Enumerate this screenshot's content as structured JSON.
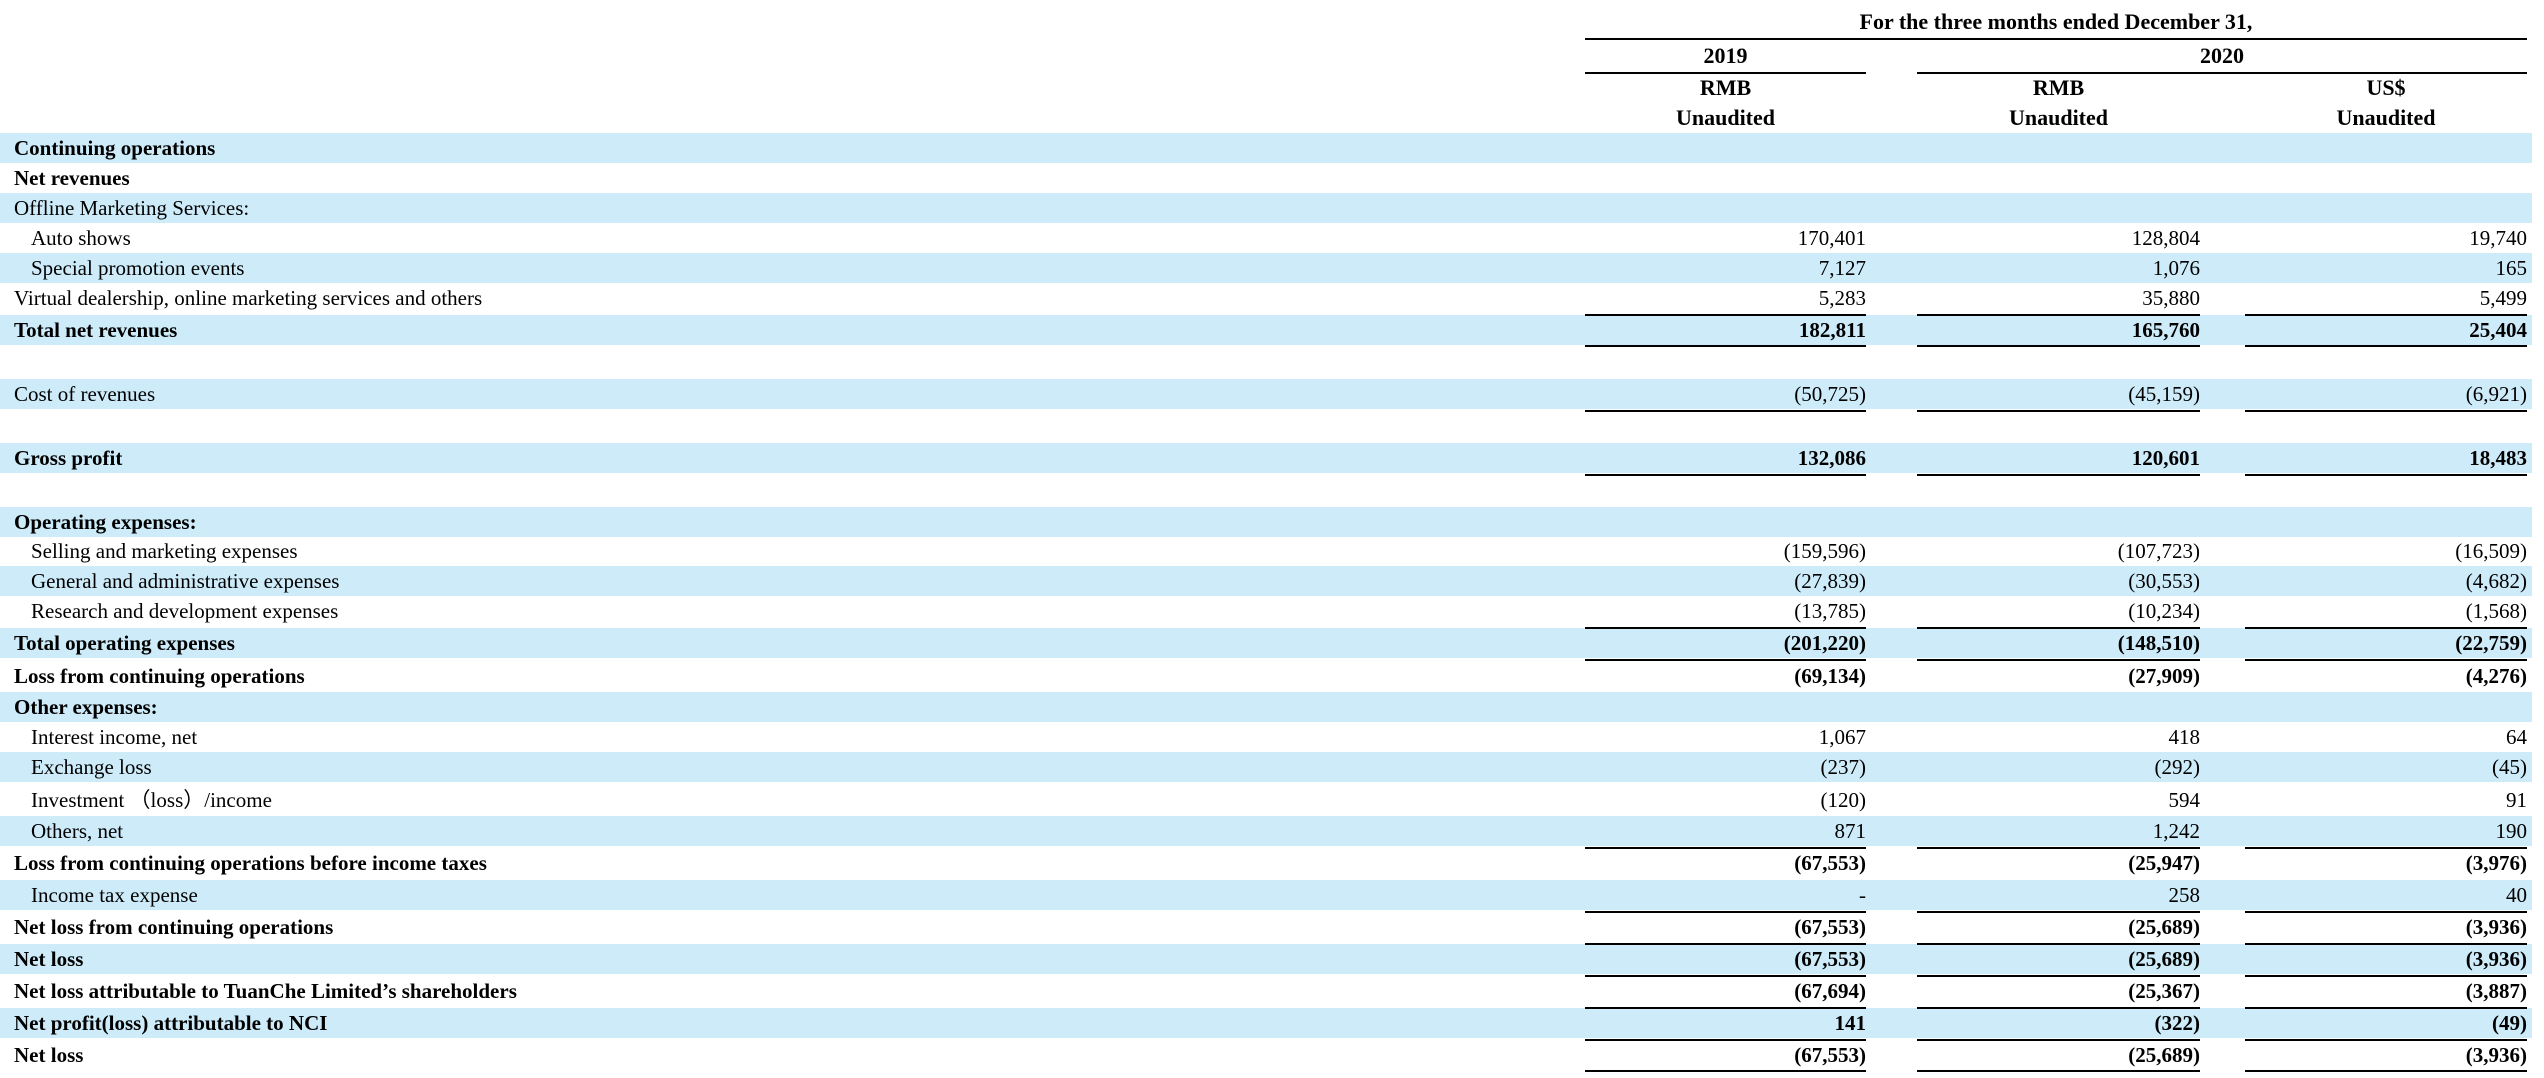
{
  "header": {
    "period": "For the three months ended December 31,",
    "year_2019": "2019",
    "year_2020": "2020",
    "col1_currency": "RMB",
    "col1_status": "Unaudited",
    "col2_currency": "RMB",
    "col2_status": "Unaudited",
    "col3_currency": "US$",
    "col3_status": "Unaudited"
  },
  "rows": [
    {
      "label": "Continuing operations",
      "bold": true,
      "indent": false,
      "shade": true,
      "v": [
        "",
        "",
        ""
      ]
    },
    {
      "label": "Net revenues",
      "bold": true,
      "indent": false,
      "shade": false,
      "v": [
        "",
        "",
        ""
      ]
    },
    {
      "label": "Offline Marketing Services:",
      "bold": false,
      "indent": false,
      "shade": true,
      "v": [
        "",
        "",
        ""
      ]
    },
    {
      "label": "Auto shows",
      "bold": false,
      "indent": true,
      "shade": false,
      "v": [
        "170,401",
        "128,804",
        "19,740"
      ]
    },
    {
      "label": "Special promotion events",
      "bold": false,
      "indent": true,
      "shade": true,
      "v": [
        "7,127",
        "1,076",
        "165"
      ]
    },
    {
      "label": "Virtual dealership, online marketing services and others",
      "bold": false,
      "indent": false,
      "shade": false,
      "v": [
        "5,283",
        "35,880",
        "5,499"
      ]
    },
    {
      "label": "Total net revenues",
      "bold": true,
      "indent": false,
      "shade": true,
      "v": [
        "182,811",
        "165,760",
        "25,404"
      ]
    },
    {
      "label": "",
      "bold": false,
      "indent": false,
      "shade": false,
      "v": [
        "",
        "",
        ""
      ]
    },
    {
      "label": "Cost of revenues",
      "bold": false,
      "indent": false,
      "shade": true,
      "v": [
        "(50,725)",
        "(45,159)",
        "(6,921)"
      ]
    },
    {
      "label": "",
      "bold": false,
      "indent": false,
      "shade": false,
      "v": [
        "",
        "",
        ""
      ]
    },
    {
      "label": "Gross profit",
      "bold": true,
      "indent": false,
      "shade": true,
      "v": [
        "132,086",
        "120,601",
        "18,483"
      ]
    },
    {
      "label": "",
      "bold": false,
      "indent": false,
      "shade": false,
      "v": [
        "",
        "",
        ""
      ]
    },
    {
      "label": "Operating expenses:",
      "bold": true,
      "indent": false,
      "shade": true,
      "v": [
        "",
        "",
        ""
      ]
    },
    {
      "label": "Selling and marketing expenses",
      "bold": false,
      "indent": true,
      "shade": false,
      "v": [
        "(159,596)",
        "(107,723)",
        "(16,509)"
      ]
    },
    {
      "label": "General and administrative expenses",
      "bold": false,
      "indent": true,
      "shade": true,
      "v": [
        "(27,839)",
        "(30,553)",
        "(4,682)"
      ]
    },
    {
      "label": "Research and development expenses",
      "bold": false,
      "indent": true,
      "shade": false,
      "v": [
        "(13,785)",
        "(10,234)",
        "(1,568)"
      ]
    },
    {
      "label": "Total operating expenses",
      "bold": true,
      "indent": false,
      "shade": true,
      "v": [
        "(201,220)",
        "(148,510)",
        "(22,759)"
      ]
    },
    {
      "label": "Loss from continuing operations",
      "bold": true,
      "indent": false,
      "shade": false,
      "v": [
        "(69,134)",
        "(27,909)",
        "(4,276)"
      ]
    },
    {
      "label": "Other expenses:",
      "bold": true,
      "indent": false,
      "shade": true,
      "v": [
        "",
        "",
        ""
      ]
    },
    {
      "label": "Interest income, net",
      "bold": false,
      "indent": true,
      "shade": false,
      "v": [
        "1,067",
        "418",
        "64"
      ]
    },
    {
      "label": "Exchange loss",
      "bold": false,
      "indent": true,
      "shade": true,
      "v": [
        "(237)",
        "(292)",
        "(45)"
      ]
    },
    {
      "label": "Investment （loss）/income",
      "bold": false,
      "indent": true,
      "shade": false,
      "v": [
        "(120)",
        "594",
        "91"
      ]
    },
    {
      "label": "Others, net",
      "bold": false,
      "indent": true,
      "shade": true,
      "v": [
        "871",
        "1,242",
        "190"
      ]
    },
    {
      "label": "Loss from continuing operations before income taxes",
      "bold": true,
      "indent": false,
      "shade": false,
      "v": [
        "(67,553)",
        "(25,947)",
        "(3,976)"
      ]
    },
    {
      "label": "Income tax expense",
      "bold": false,
      "indent": true,
      "shade": true,
      "v": [
        "-",
        "258",
        "40"
      ]
    },
    {
      "label": "Net loss from continuing operations",
      "bold": true,
      "indent": false,
      "shade": false,
      "v": [
        "(67,553)",
        "(25,689)",
        "(3,936)"
      ]
    },
    {
      "label": "Net loss",
      "bold": true,
      "indent": false,
      "shade": true,
      "v": [
        "(67,553)",
        "(25,689)",
        "(3,936)"
      ]
    },
    {
      "label": "Net loss attributable to TuanChe Limited’s shareholders",
      "bold": true,
      "indent": false,
      "shade": false,
      "v": [
        "(67,694)",
        "(25,367)",
        "(3,887)"
      ]
    },
    {
      "label": "Net profit(loss) attributable to NCI",
      "bold": true,
      "indent": false,
      "shade": true,
      "v": [
        "141",
        "(322)",
        "(49)"
      ]
    },
    {
      "label": "Net loss",
      "bold": true,
      "indent": false,
      "shade": false,
      "v": [
        "(67,553)",
        "(25,689)",
        "(3,936)"
      ]
    }
  ]
}
